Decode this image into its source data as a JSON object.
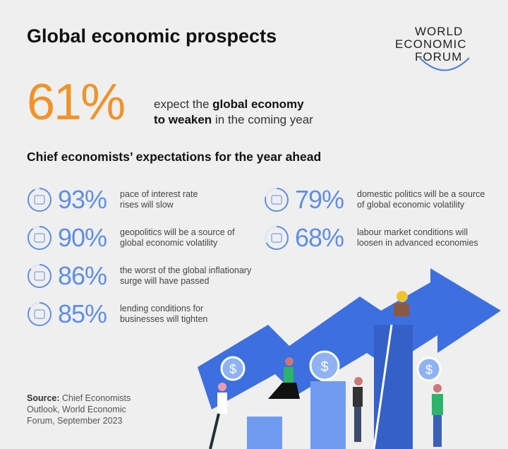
{
  "title": "Global economic prospects",
  "logo": {
    "lines": [
      "WORLD",
      "ECONOMIC",
      "FORUM"
    ]
  },
  "headline": {
    "value": "61%",
    "text_pre": "expect the ",
    "text_bold1": "global economy",
    "text_bold2": "to weaken",
    "text_post": " in the coming year"
  },
  "subtitle": "Chief economists’ expectations for the year ahead",
  "accent": "#5f8ee6",
  "highlight": "#f0932b",
  "stats": [
    {
      "value": "93%",
      "fraction": 0.93,
      "icon": "chart-icon",
      "line1": "pace of interest rate",
      "line2": "rises will slow"
    },
    {
      "value": "90%",
      "fraction": 0.9,
      "icon": "globe-icon",
      "line1": "geopolitics will be a source of",
      "line2": "global economic volatility"
    },
    {
      "value": "86%",
      "fraction": 0.86,
      "icon": "inflation-icon",
      "line1": "the worst of the global inflationary",
      "line2": "surge will have passed"
    },
    {
      "value": "85%",
      "fraction": 0.85,
      "icon": "compress-icon",
      "line1": "lending conditions for",
      "line2": "businesses will tighten"
    },
    {
      "value": "79%",
      "fraction": 0.79,
      "icon": "ballot-icon",
      "line1": "domestic politics will be a source",
      "line2": "of global economic volatility"
    },
    {
      "value": "68%",
      "fraction": 0.68,
      "icon": "worker-icon",
      "line1": "labour market conditions will",
      "line2": "loosen in advanced economies"
    }
  ],
  "source": {
    "label": "Source:",
    "line1": " Chief Economists",
    "line2": "Outlook, World Economic",
    "line3": "Forum, September 2023"
  },
  "illustration": {
    "coin_symbol": "$"
  }
}
